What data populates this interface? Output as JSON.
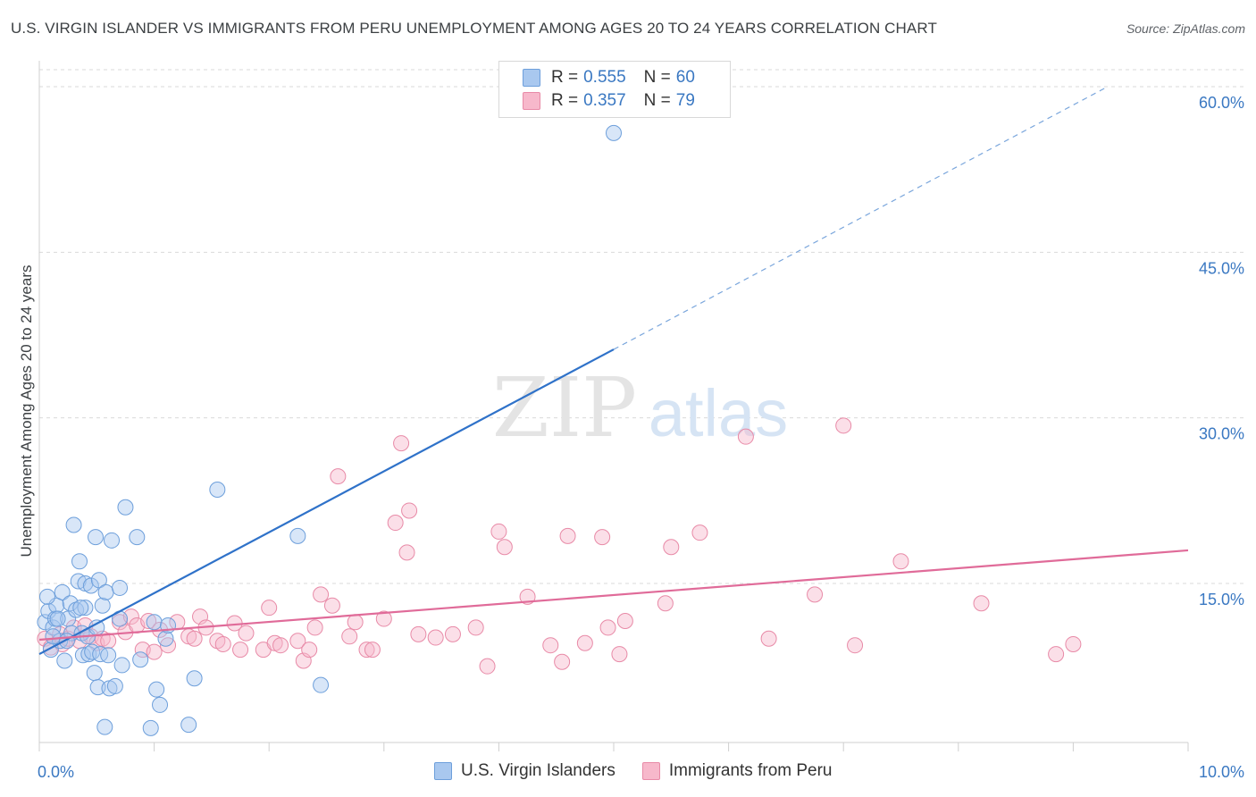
{
  "title": "U.S. VIRGIN ISLANDER VS IMMIGRANTS FROM PERU UNEMPLOYMENT AMONG AGES 20 TO 24 YEARS CORRELATION CHART",
  "source": "Source: ZipAtlas.com",
  "watermark": {
    "zip": "ZIP",
    "atlas": "atlas"
  },
  "legend": {
    "r_label": "R =",
    "n_label": "N =",
    "series": [
      {
        "name": "U.S. Virgin Islanders",
        "r": "0.555",
        "n": "60",
        "color": "#a9c8ef",
        "stroke": "#6d9fdb"
      },
      {
        "name": "Immigrants from Peru",
        "r": "0.357",
        "n": "79",
        "color": "#f7b8cb",
        "stroke": "#e88aa7"
      }
    ]
  },
  "colors": {
    "blue_line": "#2f72c9",
    "pink_line": "#e06b99",
    "axis_text": "#3a78c2",
    "grid": "#d9d9d9"
  },
  "chart_data": {
    "type": "scatter",
    "title": "U.S. VIRGIN ISLANDER VS IMMIGRANTS FROM PERU UNEMPLOYMENT AMONG AGES 20 TO 24 YEARS CORRELATION CHART",
    "xlabel": "",
    "ylabel": "Unemployment Among Ages 20 to 24 years",
    "xlim": [
      0,
      10
    ],
    "ylim": [
      0,
      62
    ],
    "x_tick_labels": [
      {
        "value": 0,
        "label": "0.0%"
      },
      {
        "value": 10,
        "label": "10.0%"
      }
    ],
    "y_tick_labels": [
      {
        "value": 15,
        "label": "15.0%"
      },
      {
        "value": 30,
        "label": "30.0%"
      },
      {
        "value": 45,
        "label": "45.0%"
      },
      {
        "value": 60,
        "label": "60.0%"
      }
    ],
    "series": [
      {
        "name": "U.S. Virgin Islanders",
        "points": [
          [
            0.05,
            11.5
          ],
          [
            0.08,
            12.5
          ],
          [
            0.1,
            9.0
          ],
          [
            0.12,
            11.0
          ],
          [
            0.14,
            11.8
          ],
          [
            0.15,
            13.0
          ],
          [
            0.18,
            9.8
          ],
          [
            0.2,
            14.2
          ],
          [
            0.22,
            8.0
          ],
          [
            0.25,
            11.8
          ],
          [
            0.27,
            13.2
          ],
          [
            0.28,
            10.5
          ],
          [
            0.3,
            20.3
          ],
          [
            0.32,
            12.6
          ],
          [
            0.34,
            15.2
          ],
          [
            0.35,
            17.0
          ],
          [
            0.37,
            10.5
          ],
          [
            0.38,
            8.5
          ],
          [
            0.4,
            12.8
          ],
          [
            0.42,
            10.2
          ],
          [
            0.4,
            15.0
          ],
          [
            0.43,
            8.6
          ],
          [
            0.45,
            14.8
          ],
          [
            0.46,
            8.8
          ],
          [
            0.48,
            6.9
          ],
          [
            0.5,
            11.0
          ],
          [
            0.49,
            19.2
          ],
          [
            0.52,
            15.3
          ],
          [
            0.53,
            8.6
          ],
          [
            0.51,
            5.6
          ],
          [
            0.55,
            13.0
          ],
          [
            0.57,
            2.0
          ],
          [
            0.58,
            14.2
          ],
          [
            0.6,
            8.5
          ],
          [
            0.61,
            5.5
          ],
          [
            0.63,
            18.9
          ],
          [
            0.66,
            5.7
          ],
          [
            0.7,
            14.6
          ],
          [
            0.7,
            11.8
          ],
          [
            0.72,
            7.6
          ],
          [
            0.75,
            21.9
          ],
          [
            0.85,
            19.2
          ],
          [
            0.88,
            8.1
          ],
          [
            0.97,
            1.9
          ],
          [
            1.0,
            11.5
          ],
          [
            1.02,
            5.4
          ],
          [
            1.05,
            4.0
          ],
          [
            1.1,
            10.0
          ],
          [
            1.12,
            11.2
          ],
          [
            1.3,
            2.2
          ],
          [
            1.35,
            6.4
          ],
          [
            1.55,
            23.5
          ],
          [
            2.25,
            19.3
          ],
          [
            2.45,
            5.8
          ],
          [
            0.07,
            13.8
          ],
          [
            0.12,
            10.2
          ],
          [
            0.16,
            11.8
          ],
          [
            0.24,
            9.8
          ],
          [
            0.36,
            12.8
          ],
          [
            5.0,
            55.8
          ]
        ]
      },
      {
        "name": "Immigrants from Peru",
        "points": [
          [
            0.05,
            10.0
          ],
          [
            0.1,
            9.2
          ],
          [
            0.18,
            10.4
          ],
          [
            0.2,
            9.5
          ],
          [
            0.25,
            10.0
          ],
          [
            0.3,
            11.0
          ],
          [
            0.35,
            9.8
          ],
          [
            0.4,
            11.2
          ],
          [
            0.45,
            10.2
          ],
          [
            0.5,
            9.6
          ],
          [
            0.55,
            10.0
          ],
          [
            0.6,
            9.8
          ],
          [
            0.7,
            11.5
          ],
          [
            0.75,
            10.6
          ],
          [
            0.8,
            12.0
          ],
          [
            0.85,
            11.2
          ],
          [
            0.9,
            9.0
          ],
          [
            0.95,
            11.6
          ],
          [
            1.0,
            8.8
          ],
          [
            1.05,
            10.8
          ],
          [
            1.12,
            9.4
          ],
          [
            1.2,
            11.5
          ],
          [
            1.3,
            10.2
          ],
          [
            1.35,
            10.0
          ],
          [
            1.4,
            12.0
          ],
          [
            1.45,
            11.0
          ],
          [
            1.55,
            9.8
          ],
          [
            1.6,
            9.5
          ],
          [
            1.7,
            11.4
          ],
          [
            1.75,
            9.0
          ],
          [
            1.8,
            10.5
          ],
          [
            1.95,
            9.0
          ],
          [
            2.0,
            12.8
          ],
          [
            2.05,
            9.6
          ],
          [
            2.1,
            9.4
          ],
          [
            2.25,
            9.8
          ],
          [
            2.3,
            8.0
          ],
          [
            2.35,
            9.0
          ],
          [
            2.4,
            11.0
          ],
          [
            2.45,
            14.0
          ],
          [
            2.55,
            13.0
          ],
          [
            2.6,
            24.7
          ],
          [
            2.7,
            10.2
          ],
          [
            2.75,
            11.5
          ],
          [
            2.85,
            9.0
          ],
          [
            2.9,
            9.0
          ],
          [
            3.0,
            11.8
          ],
          [
            3.1,
            20.5
          ],
          [
            3.15,
            27.7
          ],
          [
            3.2,
            17.8
          ],
          [
            3.22,
            21.6
          ],
          [
            3.3,
            10.4
          ],
          [
            3.45,
            10.1
          ],
          [
            3.6,
            10.4
          ],
          [
            3.8,
            11.0
          ],
          [
            3.9,
            7.5
          ],
          [
            4.0,
            19.7
          ],
          [
            4.05,
            18.3
          ],
          [
            4.25,
            13.8
          ],
          [
            4.45,
            9.4
          ],
          [
            4.55,
            7.9
          ],
          [
            4.6,
            19.3
          ],
          [
            4.75,
            9.6
          ],
          [
            4.9,
            19.2
          ],
          [
            4.95,
            11.0
          ],
          [
            5.05,
            8.6
          ],
          [
            5.1,
            11.6
          ],
          [
            5.45,
            13.2
          ],
          [
            5.5,
            18.3
          ],
          [
            5.75,
            19.6
          ],
          [
            6.15,
            28.3
          ],
          [
            6.35,
            10.0
          ],
          [
            6.75,
            14.0
          ],
          [
            7.0,
            29.3
          ],
          [
            7.1,
            9.4
          ],
          [
            7.5,
            17.0
          ],
          [
            8.2,
            13.2
          ],
          [
            8.85,
            8.6
          ],
          [
            9.0,
            9.5
          ]
        ]
      }
    ],
    "trendlines": [
      {
        "series": "U.S. Virgin Islanders",
        "x_start": 0.0,
        "y_start": 8.6,
        "x_solid_end": 5.0,
        "y_solid_end": 36.2,
        "x_dash_end": 9.3,
        "y_dash_end": 60.0
      },
      {
        "series": "Immigrants from Peru",
        "x_start": 0.0,
        "y_start": 9.9,
        "x_end": 10.0,
        "y_end": 18.0
      }
    ]
  }
}
